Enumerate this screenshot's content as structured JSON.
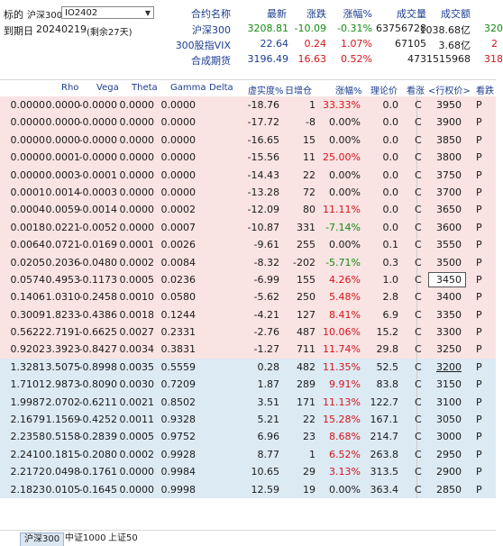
{
  "header": {
    "underlying_label": "标的",
    "underlying_value": "沪深300",
    "contract_select": "IO2402",
    "expiry_label": "到期日",
    "expiry_value": "20240219",
    "expiry_remaining": "(剩余27天)",
    "quote_columns": [
      "合约名称",
      "最新",
      "涨跌",
      "涨幅%",
      "成交量",
      "成交额"
    ],
    "quotes": [
      {
        "name": "沪深300",
        "last": "3208.81",
        "change": "-10.09",
        "pct": "-0.31%",
        "volume": "63756728",
        "amount": "1038.68亿",
        "extra": "320"
      },
      {
        "name": "300股指VIX",
        "last": "22.64",
        "change": "0.24",
        "pct": "1.07%",
        "volume": "67105",
        "amount": "3.68亿",
        "extra": "2"
      },
      {
        "name": "合成期货",
        "last": "3196.49",
        "change": "16.63",
        "pct": "0.52%",
        "volume": "473",
        "amount": "1515968",
        "extra": "318"
      }
    ]
  },
  "table": {
    "columns": [
      "Rho",
      "Vega",
      "Theta",
      "Gamma",
      "Delta",
      "虚实度%",
      "日增仓",
      "涨幅%",
      "理论价",
      "看涨",
      "<行权价>",
      "看跌"
    ],
    "rows": [
      {
        "rho": "0.0000",
        "vega": "0.0000",
        "theta": "-0.0000",
        "gamma": "0.0000",
        "delta": "0.0000",
        "moneyness": "-18.76",
        "oi": "1",
        "pct": "33.33%",
        "pc": "red",
        "theo": "0.0",
        "call": "C",
        "strike": "3950",
        "put": "P"
      },
      {
        "rho": "0.0000",
        "vega": "0.0000",
        "theta": "-0.0000",
        "gamma": "0.0000",
        "delta": "0.0000",
        "moneyness": "-17.72",
        "oi": "-8",
        "pct": "0.00%",
        "pc": "black",
        "theo": "0.0",
        "call": "C",
        "strike": "3900",
        "put": "P"
      },
      {
        "rho": "0.0000",
        "vega": "0.0000",
        "theta": "-0.0000",
        "gamma": "0.0000",
        "delta": "0.0000",
        "moneyness": "-16.65",
        "oi": "15",
        "pct": "0.00%",
        "pc": "black",
        "theo": "0.0",
        "call": "C",
        "strike": "3850",
        "put": "P"
      },
      {
        "rho": "0.0000",
        "vega": "0.0001",
        "theta": "-0.0000",
        "gamma": "0.0000",
        "delta": "0.0000",
        "moneyness": "-15.56",
        "oi": "11",
        "pct": "25.00%",
        "pc": "red",
        "theo": "0.0",
        "call": "C",
        "strike": "3800",
        "put": "P"
      },
      {
        "rho": "0.0000",
        "vega": "0.0003",
        "theta": "-0.0001",
        "gamma": "0.0000",
        "delta": "0.0000",
        "moneyness": "-14.43",
        "oi": "22",
        "pct": "0.00%",
        "pc": "black",
        "theo": "0.0",
        "call": "C",
        "strike": "3750",
        "put": "P"
      },
      {
        "rho": "0.0001",
        "vega": "0.0014",
        "theta": "-0.0003",
        "gamma": "0.0000",
        "delta": "0.0000",
        "moneyness": "-13.28",
        "oi": "72",
        "pct": "0.00%",
        "pc": "black",
        "theo": "0.0",
        "call": "C",
        "strike": "3700",
        "put": "P"
      },
      {
        "rho": "0.0004",
        "vega": "0.0059",
        "theta": "-0.0014",
        "gamma": "0.0000",
        "delta": "0.0002",
        "moneyness": "-12.09",
        "oi": "80",
        "pct": "11.11%",
        "pc": "red",
        "theo": "0.0",
        "call": "C",
        "strike": "3650",
        "put": "P"
      },
      {
        "rho": "0.0018",
        "vega": "0.0221",
        "theta": "-0.0052",
        "gamma": "0.0000",
        "delta": "0.0007",
        "moneyness": "-10.87",
        "oi": "331",
        "pct": "-7.14%",
        "pc": "green",
        "theo": "0.0",
        "call": "C",
        "strike": "3600",
        "put": "P"
      },
      {
        "rho": "0.0064",
        "vega": "0.0721",
        "theta": "-0.0169",
        "gamma": "0.0001",
        "delta": "0.0026",
        "moneyness": "-9.61",
        "oi": "255",
        "pct": "0.00%",
        "pc": "black",
        "theo": "0.1",
        "call": "C",
        "strike": "3550",
        "put": "P"
      },
      {
        "rho": "0.0205",
        "vega": "0.2036",
        "theta": "-0.0480",
        "gamma": "0.0002",
        "delta": "0.0084",
        "moneyness": "-8.32",
        "oi": "-202",
        "pct": "-5.71%",
        "pc": "green",
        "theo": "0.3",
        "call": "C",
        "strike": "3500",
        "put": "P"
      },
      {
        "rho": "0.0574",
        "vega": "0.4953",
        "theta": "-0.1173",
        "gamma": "0.0005",
        "delta": "0.0236",
        "moneyness": "-6.99",
        "oi": "155",
        "pct": "4.26%",
        "pc": "red",
        "theo": "1.0",
        "call": "C",
        "strike": "3450",
        "put": "P",
        "boxed": true
      },
      {
        "rho": "0.1406",
        "vega": "1.0310",
        "theta": "-0.2458",
        "gamma": "0.0010",
        "delta": "0.0580",
        "moneyness": "-5.62",
        "oi": "250",
        "pct": "5.48%",
        "pc": "red",
        "theo": "2.8",
        "call": "C",
        "strike": "3400",
        "put": "P"
      },
      {
        "rho": "0.3009",
        "vega": "1.8233",
        "theta": "-0.4386",
        "gamma": "0.0018",
        "delta": "0.1244",
        "moneyness": "-4.21",
        "oi": "127",
        "pct": "8.41%",
        "pc": "red",
        "theo": "6.9",
        "call": "C",
        "strike": "3350",
        "put": "P"
      },
      {
        "rho": "0.5622",
        "vega": "2.7191",
        "theta": "-0.6625",
        "gamma": "0.0027",
        "delta": "0.2331",
        "moneyness": "-2.76",
        "oi": "487",
        "pct": "10.06%",
        "pc": "red",
        "theo": "15.2",
        "call": "C",
        "strike": "3300",
        "put": "P"
      },
      {
        "rho": "0.9202",
        "vega": "3.3923",
        "theta": "-0.8427",
        "gamma": "0.0034",
        "delta": "0.3831",
        "moneyness": "-1.27",
        "oi": "711",
        "pct": "11.74%",
        "pc": "red",
        "theo": "29.8",
        "call": "C",
        "strike": "3250",
        "put": "P"
      },
      {
        "rho": "1.3281",
        "vega": "3.5075",
        "theta": "-0.8998",
        "gamma": "0.0035",
        "delta": "0.5559",
        "moneyness": "0.28",
        "oi": "482",
        "pct": "11.35%",
        "pc": "red",
        "theo": "52.5",
        "call": "C",
        "strike": "3200",
        "put": "P",
        "underline": true
      },
      {
        "rho": "1.7101",
        "vega": "2.9873",
        "theta": "-0.8090",
        "gamma": "0.0030",
        "delta": "0.7209",
        "moneyness": "1.87",
        "oi": "289",
        "pct": "9.91%",
        "pc": "red",
        "theo": "83.8",
        "call": "C",
        "strike": "3150",
        "put": "P"
      },
      {
        "rho": "1.9987",
        "vega": "2.0702",
        "theta": "-0.6211",
        "gamma": "0.0021",
        "delta": "0.8502",
        "moneyness": "3.51",
        "oi": "171",
        "pct": "11.13%",
        "pc": "red",
        "theo": "122.7",
        "call": "C",
        "strike": "3100",
        "put": "P"
      },
      {
        "rho": "2.1679",
        "vega": "1.1569",
        "theta": "-0.4252",
        "gamma": "0.0011",
        "delta": "0.9328",
        "moneyness": "5.21",
        "oi": "22",
        "pct": "15.28%",
        "pc": "red",
        "theo": "167.1",
        "call": "C",
        "strike": "3050",
        "put": "P"
      },
      {
        "rho": "2.2358",
        "vega": "0.5158",
        "theta": "-0.2839",
        "gamma": "0.0005",
        "delta": "0.9752",
        "moneyness": "6.96",
        "oi": "23",
        "pct": "8.68%",
        "pc": "red",
        "theo": "214.7",
        "call": "C",
        "strike": "3000",
        "put": "P"
      },
      {
        "rho": "2.2410",
        "vega": "0.1815",
        "theta": "-0.2080",
        "gamma": "0.0002",
        "delta": "0.9928",
        "moneyness": "8.77",
        "oi": "1",
        "pct": "6.52%",
        "pc": "red",
        "theo": "263.8",
        "call": "C",
        "strike": "2950",
        "put": "P"
      },
      {
        "rho": "2.2172",
        "vega": "0.0498",
        "theta": "-0.1761",
        "gamma": "0.0000",
        "delta": "0.9984",
        "moneyness": "10.65",
        "oi": "29",
        "pct": "3.13%",
        "pc": "red",
        "theo": "313.5",
        "call": "C",
        "strike": "2900",
        "put": "P"
      },
      {
        "rho": "2.1823",
        "vega": "0.0105",
        "theta": "-0.1645",
        "gamma": "0.0000",
        "delta": "0.9998",
        "moneyness": "12.59",
        "oi": "19",
        "pct": "0.00%",
        "pc": "black",
        "theo": "363.4",
        "call": "C",
        "strike": "2850",
        "put": "P"
      }
    ]
  },
  "footer": {
    "tabs": [
      "沪深300",
      "中证1000",
      "上证50"
    ]
  },
  "colors": {
    "otm_bg": "#f9e3e3",
    "itm_bg": "#dceaf4",
    "up": "#d7141b",
    "down": "#148a14",
    "label": "#1c3d8f"
  }
}
